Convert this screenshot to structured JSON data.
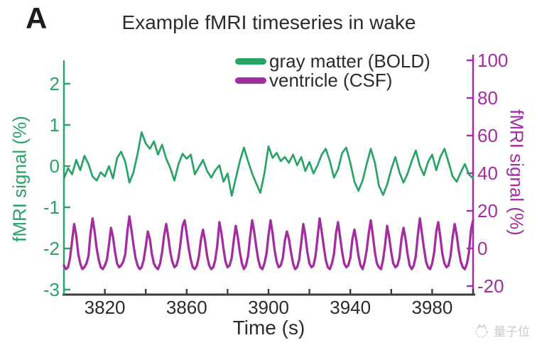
{
  "panel_label": "A",
  "title": "Example fMRI timeseries in wake",
  "legend": [
    {
      "label": "gray matter (BOLD)",
      "color": "#2aa366"
    },
    {
      "label": "ventricle (CSF)",
      "color": "#a32da0"
    }
  ],
  "watermark": {
    "text": "量子位",
    "icon": "qbitai-cat-logo"
  },
  "colors": {
    "bold_green": "#2aa366",
    "csf_magenta": "#a32da0",
    "axis_dark": "#3c3c3c",
    "text_dark": "#2b2b2b"
  },
  "chart_data": {
    "type": "line",
    "title": "Example fMRI timeseries in wake",
    "xlabel": "Time (s)",
    "xlim": [
      3800,
      4000
    ],
    "x_tick_labels": [
      3820,
      3860,
      3900,
      3940,
      3980
    ],
    "x_all_ticks": [
      3820,
      3840,
      3860,
      3880,
      3900,
      3920,
      3940,
      3960,
      3980,
      4000
    ],
    "grid": false,
    "legend_position": "top-right",
    "left_axis": {
      "label": "fMRI signal (%)",
      "color": "#2aa366",
      "ticks": [
        2,
        1,
        0,
        -1,
        -2,
        -3
      ],
      "ylim": [
        -3.12,
        2.57
      ]
    },
    "right_axis": {
      "label": "fMRI signal (%)",
      "color": "#a32da0",
      "ticks": [
        100,
        80,
        60,
        40,
        20,
        0,
        -20
      ],
      "ylim": [
        -24.5,
        103
      ]
    },
    "series": [
      {
        "name": "gray matter (BOLD)",
        "axis": "left",
        "color": "#2aa366",
        "t0": 3800,
        "dt": 2,
        "values": [
          -0.3,
          -0.05,
          -0.2,
          0.15,
          -0.1,
          0.25,
          0.05,
          -0.25,
          -0.35,
          -0.15,
          -0.25,
          0.0,
          -0.3,
          0.2,
          0.35,
          0.1,
          -0.4,
          -0.15,
          0.3,
          0.82,
          0.55,
          0.42,
          0.6,
          0.28,
          0.52,
          0.18,
          -0.05,
          -0.35,
          0.05,
          0.3,
          0.18,
          0.28,
          -0.2,
          -0.02,
          0.15,
          -0.12,
          -0.28,
          -0.1,
          0.02,
          -0.38,
          -0.18,
          -0.72,
          -0.3,
          0.12,
          0.45,
          0.12,
          -0.18,
          -0.42,
          -0.65,
          -0.18,
          0.48,
          0.2,
          0.32,
          0.12,
          0.22,
          0.08,
          0.28,
          0.02,
          0.22,
          -0.12,
          0.1,
          -0.18,
          0.02,
          0.28,
          0.42,
          0.12,
          -0.28,
          -0.08,
          0.32,
          0.45,
          0.08,
          -0.38,
          -0.6,
          -0.35,
          0.05,
          0.42,
          0.08,
          -0.48,
          -0.7,
          -0.45,
          -0.08,
          0.22,
          -0.15,
          -0.4,
          -0.18,
          0.12,
          0.38,
          0.0,
          -0.22,
          0.1,
          0.28,
          -0.1,
          0.22,
          0.42,
          0.1,
          -0.25,
          -0.38,
          -0.15,
          0.05,
          -0.2,
          -0.3
        ]
      },
      {
        "name": "ventricle (CSF)",
        "axis": "right",
        "color": "#a32da0",
        "t0": 3800,
        "dt": 1,
        "values": [
          -9,
          -11,
          -10,
          -5,
          4,
          13,
          7,
          -3,
          -8,
          -11,
          -10,
          -8,
          -4,
          8,
          16,
          9,
          0,
          -6,
          -10,
          -11,
          -9,
          -6,
          2,
          11,
          6,
          -2,
          -8,
          -10,
          -9,
          -7,
          -3,
          9,
          17,
          10,
          2,
          -5,
          -9,
          -11,
          -10,
          -6,
          1,
          9,
          5,
          -3,
          -8,
          -10,
          -11,
          -8,
          -2,
          7,
          13,
          6,
          -2,
          -7,
          -10,
          -9,
          -5,
          3,
          12,
          15,
          8,
          0,
          -6,
          -10,
          -11,
          -9,
          -4,
          5,
          10,
          4,
          -4,
          -9,
          -11,
          -10,
          -6,
          2,
          14,
          8,
          0,
          -7,
          -10,
          -9,
          -5,
          4,
          12,
          6,
          -2,
          -8,
          -11,
          -9,
          -4,
          6,
          15,
          9,
          1,
          -6,
          -10,
          -11,
          -8,
          -3,
          7,
          15,
          8,
          -1,
          -7,
          -10,
          -9,
          -5,
          4,
          9,
          5,
          -2,
          -8,
          -11,
          -10,
          -6,
          3,
          13,
          7,
          -2,
          -8,
          -10,
          -9,
          -4,
          6,
          16,
          9,
          1,
          -6,
          -10,
          -11,
          -8,
          -3,
          8,
          14,
          6,
          -2,
          -8,
          -10,
          -9,
          -5,
          5,
          10,
          4,
          -4,
          -9,
          -11,
          -7,
          -1,
          8,
          15,
          7,
          -2,
          -8,
          -10,
          -11,
          -6,
          2,
          12,
          6,
          -2,
          -8,
          -10,
          -9,
          -5,
          5,
          11,
          5,
          -3,
          -9,
          -11,
          -9,
          -4,
          7,
          16,
          8,
          0,
          -7,
          -10,
          -11,
          -8,
          -2,
          9,
          14,
          6,
          -3,
          -8,
          -10,
          -9,
          -4,
          6,
          13,
          7,
          -1,
          -7,
          -10,
          -11,
          -8,
          -2,
          10,
          15
        ]
      }
    ]
  }
}
